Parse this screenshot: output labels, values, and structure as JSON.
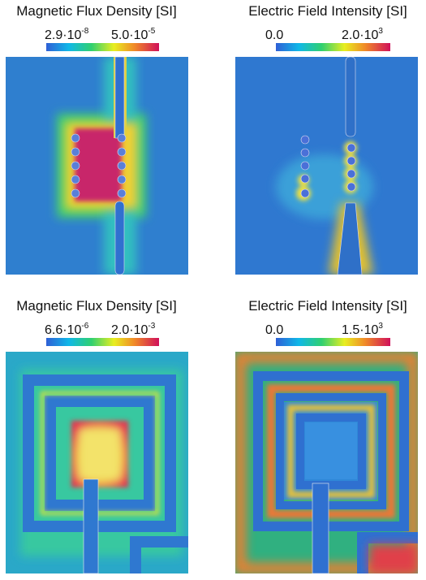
{
  "panels": [
    {
      "title": "Magnetic Flux Density [SI]",
      "min": {
        "base": "2.9·10",
        "exp": "-8"
      },
      "max": {
        "base": "5.0·10",
        "exp": "-5"
      }
    },
    {
      "title": "Electric Field Intensity [SI]",
      "min": {
        "base": "0.0"
      },
      "max": {
        "base": "2.0·10",
        "exp": "3"
      }
    },
    {
      "title": "Magnetic Flux Density [SI]",
      "min": {
        "base": "6.6·10",
        "exp": "-6"
      },
      "max": {
        "base": "2.0·10",
        "exp": "-3"
      }
    },
    {
      "title": "Electric Field Intensity [SI]",
      "min": {
        "base": "0.0"
      },
      "max": {
        "base": "1.5·10",
        "exp": "3"
      }
    }
  ]
}
